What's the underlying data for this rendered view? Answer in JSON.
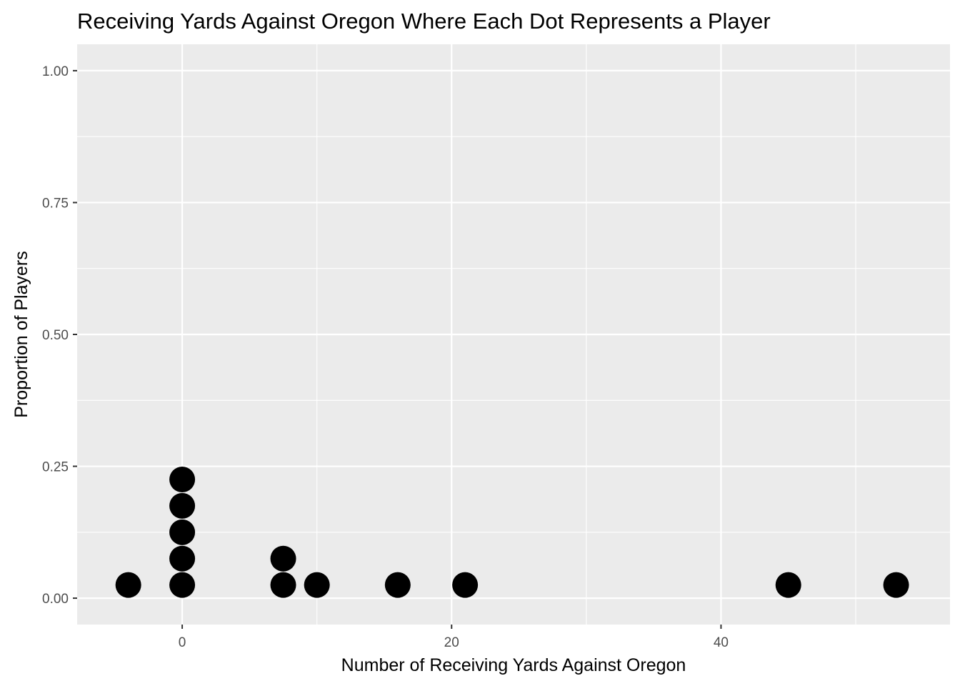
{
  "chart_data": {
    "type": "scatter",
    "subtype": "dotplot",
    "title": "Receiving Yards Against Oregon Where Each Dot Represents a Player",
    "xlabel": "Number of Receiving Yards Against Oregon",
    "ylabel": "Proportion of Players",
    "xlim": [
      -7.8,
      57
    ],
    "ylim": [
      -0.05,
      1.05
    ],
    "x_ticks": [
      0,
      20,
      40
    ],
    "x_tick_labels": [
      "0",
      "20",
      "40"
    ],
    "y_ticks": [
      0,
      0.25,
      0.5,
      0.75,
      1.0
    ],
    "y_tick_labels": [
      "0.00",
      "0.25",
      "0.50",
      "0.75",
      "1.00"
    ],
    "grid": true,
    "legend": "none",
    "panel_background": "#ebebeb",
    "grid_color": "#ffffff",
    "point_color": "#000000",
    "points": [
      {
        "x": -4,
        "y": 0.025
      },
      {
        "x": 0,
        "y": 0.025
      },
      {
        "x": 0,
        "y": 0.075
      },
      {
        "x": 0,
        "y": 0.125
      },
      {
        "x": 0,
        "y": 0.175
      },
      {
        "x": 0,
        "y": 0.225
      },
      {
        "x": 7.5,
        "y": 0.025
      },
      {
        "x": 7.5,
        "y": 0.075
      },
      {
        "x": 10,
        "y": 0.025
      },
      {
        "x": 16,
        "y": 0.025
      },
      {
        "x": 21,
        "y": 0.025
      },
      {
        "x": 45,
        "y": 0.025
      },
      {
        "x": 53,
        "y": 0.025
      }
    ]
  }
}
